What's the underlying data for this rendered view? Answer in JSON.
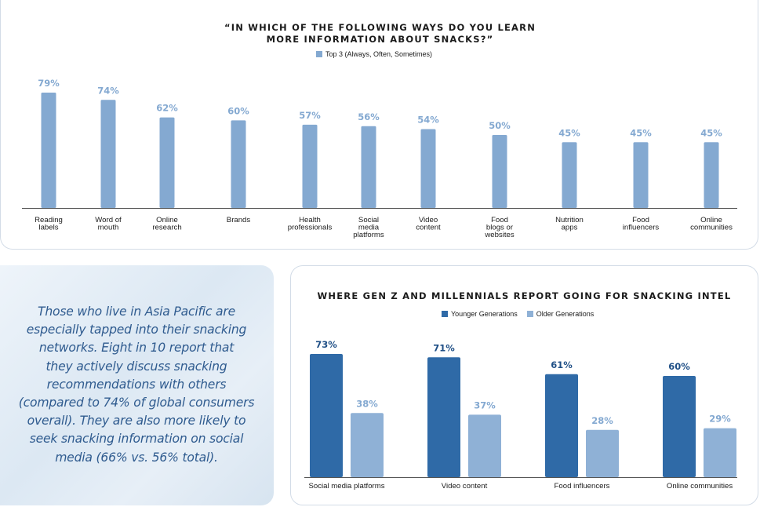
{
  "chart_data": [
    {
      "type": "bar",
      "title_lines": [
        "“IN WHICH OF THE FOLLOWING WAYS DO YOU LEARN",
        "MORE INFORMATION ABOUT SNACKS?”"
      ],
      "categories": [
        [
          "Reading",
          "labels"
        ],
        [
          "Word of",
          "mouth"
        ],
        [
          "Online",
          "research"
        ],
        [
          "Brands"
        ],
        [
          "Health",
          "professionals"
        ],
        [
          "Social",
          "media",
          "platforms"
        ],
        [
          "Video",
          "content"
        ],
        [
          "Food",
          "blogs or",
          "websites"
        ],
        [
          "Nutrition",
          "apps"
        ],
        [
          "Food",
          "influencers"
        ],
        [
          "Online",
          "communities"
        ]
      ],
      "series": [
        {
          "name": "Top 3 (Always, Often, Sometimes)",
          "values": [
            79,
            74,
            62,
            60,
            57,
            56,
            54,
            50,
            45,
            45,
            45
          ],
          "color": "#84a9d1"
        }
      ],
      "value_suffix": "%",
      "label_color": "#84a9d1",
      "ylim": [
        0,
        100
      ],
      "grid": false,
      "legend_position": "top-center"
    },
    {
      "type": "bar",
      "title": "WHERE GEN Z AND MILLENNIALS REPORT GOING FOR SNACKING INTEL",
      "categories": [
        "Social media platforms",
        "Video content",
        "Food influencers",
        "Online communities"
      ],
      "series": [
        {
          "name": "Younger Generations",
          "values": [
            73,
            71,
            61,
            60
          ],
          "color": "#2f6aa7",
          "label_color": "#1f4f86"
        },
        {
          "name": "Older Generations",
          "values": [
            38,
            37,
            28,
            29
          ],
          "color": "#8fb1d6",
          "label_color": "#84a9d1"
        }
      ],
      "value_suffix": "%",
      "ylim": [
        0,
        100
      ],
      "grid": false,
      "legend_position": "top-center"
    }
  ],
  "callout": {
    "text_lines": [
      "Those who live in Asia Pacific are",
      "especially tapped into their snacking",
      "networks. Eight in 10 report that",
      "they actively discuss snacking",
      "recommendations with others",
      "(compared to 74% of global consumers",
      "overall). They are also more likely to",
      "seek snacking information on social",
      "media (66% vs. 56% total)."
    ]
  }
}
